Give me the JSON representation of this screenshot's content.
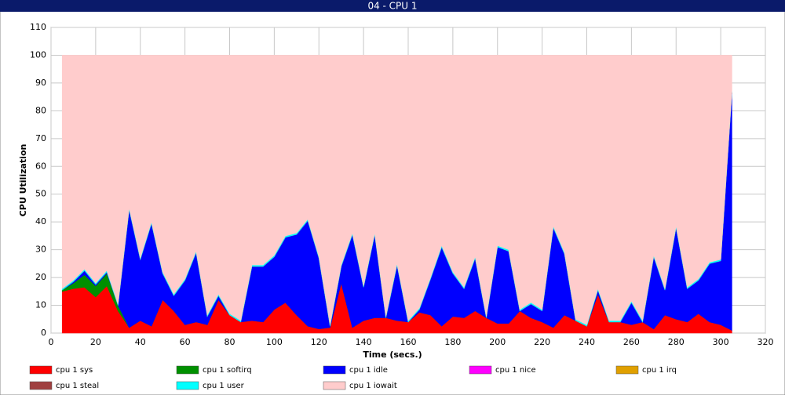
{
  "chart_data": {
    "type": "stacked_area",
    "title": "04 - CPU 1",
    "xlabel": "Time (secs.)",
    "ylabel": "CPU Utilization",
    "x": [
      5,
      10,
      15,
      20,
      25,
      30,
      35,
      40,
      45,
      50,
      55,
      60,
      65,
      70,
      75,
      80,
      85,
      90,
      95,
      100,
      105,
      110,
      115,
      120,
      125,
      130,
      135,
      140,
      145,
      150,
      155,
      160,
      165,
      170,
      175,
      180,
      185,
      190,
      195,
      200,
      205,
      210,
      215,
      220,
      225,
      230,
      235,
      240,
      245,
      250,
      255,
      260,
      265,
      270,
      275,
      280,
      285,
      290,
      295,
      300,
      305
    ],
    "xlim": [
      0,
      320
    ],
    "xticks": [
      0,
      20,
      40,
      60,
      80,
      100,
      120,
      140,
      160,
      180,
      200,
      220,
      240,
      260,
      280,
      300,
      320
    ],
    "ylim": [
      0,
      110
    ],
    "yticks": [
      0,
      10,
      20,
      30,
      40,
      50,
      60,
      70,
      80,
      90,
      100,
      110
    ],
    "grid": true,
    "series": [
      {
        "name": "cpu 1 sys",
        "color": "#ff0000",
        "values": [
          15,
          16,
          16.5,
          13,
          17,
          8,
          2,
          4.5,
          2.5,
          12,
          8,
          3,
          4,
          3,
          12,
          6.5,
          4,
          4.5,
          4,
          8.5,
          11,
          6.5,
          2.5,
          1.5,
          2,
          18,
          2,
          4.5,
          5.5,
          5.5,
          4.5,
          4,
          7.5,
          6.5,
          2.5,
          6,
          5.5,
          8,
          5.5,
          3.5,
          3.5,
          8,
          5.5,
          4,
          2,
          6.5,
          4.5,
          2.5,
          14,
          4,
          4,
          3,
          4,
          1.5,
          6.5,
          5,
          4,
          7,
          4,
          3,
          1
        ]
      },
      {
        "name": "cpu 1 softirq",
        "color": "#009000",
        "values": [
          0.5,
          2,
          4.5,
          4,
          4.5,
          2,
          0,
          0,
          0,
          0,
          0,
          0,
          0,
          0,
          0,
          0,
          0,
          0,
          0,
          0,
          0,
          0,
          0,
          0,
          0,
          0,
          0,
          0,
          0,
          0,
          0,
          0,
          0,
          0,
          0,
          0,
          0,
          0,
          0,
          0,
          0,
          0,
          0,
          0,
          0,
          0,
          0,
          0,
          0,
          0,
          0,
          0,
          0,
          0,
          0,
          0,
          0,
          0,
          0,
          0,
          0
        ]
      },
      {
        "name": "cpu 1 idle",
        "color": "#0000ff",
        "values": [
          0,
          0.5,
          1.5,
          0.5,
          0.5,
          0,
          42.5,
          22,
          37,
          9.5,
          5.5,
          16,
          25,
          3,
          1.5,
          0,
          0,
          19.5,
          20,
          19,
          23.5,
          29,
          38,
          25.5,
          0.5,
          6,
          33.5,
          12,
          30,
          0,
          20,
          0,
          1,
          13,
          28.5,
          15.5,
          10.5,
          19,
          0,
          27.5,
          26,
          0,
          5,
          4,
          36,
          22,
          0,
          0,
          1.5,
          0,
          0,
          8,
          0,
          26,
          9,
          33,
          12,
          12,
          21,
          23,
          85.5
        ]
      },
      {
        "name": "cpu 1 nice",
        "color": "#ff00ff",
        "values": [
          0,
          0,
          0,
          0,
          0,
          0,
          0,
          0,
          0,
          0,
          0,
          0,
          0,
          0,
          0,
          0,
          0,
          0,
          0,
          0,
          0,
          0,
          0,
          0,
          0,
          0,
          0,
          0,
          0,
          0,
          0,
          0,
          0,
          0,
          0,
          0,
          0,
          0,
          0,
          0,
          0,
          0,
          0,
          0,
          0,
          0,
          0,
          0,
          0,
          0,
          0,
          0,
          0,
          0,
          0,
          0,
          0,
          0,
          0,
          0,
          0
        ]
      },
      {
        "name": "cpu 1 irq",
        "color": "#e0a000",
        "values": [
          0,
          0,
          0,
          0,
          0,
          0,
          0,
          0,
          0,
          0,
          0,
          0,
          0,
          0,
          0,
          0,
          0,
          0,
          0,
          0,
          0,
          0,
          0,
          0,
          0,
          0,
          0,
          0,
          0,
          0,
          0,
          0,
          0,
          0,
          0,
          0,
          0,
          0,
          0,
          0,
          0,
          0,
          0,
          0,
          0,
          0,
          0,
          0,
          0,
          0,
          0,
          0,
          0,
          0,
          0,
          0,
          0,
          0,
          0,
          0,
          0
        ]
      },
      {
        "name": "cpu 1 steal",
        "color": "#a04040",
        "values": [
          0,
          0,
          0,
          0,
          0,
          0,
          0,
          0,
          0,
          0,
          0,
          0,
          0,
          0,
          0,
          0,
          0,
          0,
          0,
          0,
          0,
          0,
          0,
          0,
          0,
          0,
          0,
          0,
          0,
          0,
          0,
          0,
          0,
          0,
          0,
          0,
          0,
          0,
          0,
          0,
          0,
          0,
          0,
          0,
          0,
          0,
          0,
          0,
          0,
          0,
          0,
          0,
          0,
          0,
          0,
          0,
          0,
          0,
          0,
          0,
          0
        ]
      },
      {
        "name": "cpu 1 user",
        "color": "#00ffff",
        "values": [
          0.5,
          0.5,
          0.5,
          0.5,
          0.5,
          0.5,
          0.5,
          0.5,
          0.5,
          0.5,
          0.5,
          0.5,
          0.5,
          0.5,
          0.5,
          0.5,
          0.5,
          0.5,
          0.5,
          0.5,
          0.5,
          0.5,
          0.5,
          0.5,
          0.5,
          0.5,
          0.5,
          0.5,
          0.5,
          0.5,
          0.5,
          0.5,
          0.5,
          0.5,
          0.5,
          0.5,
          0.5,
          0.5,
          0.5,
          0.5,
          0.5,
          0.5,
          0.5,
          0.5,
          0.5,
          0.5,
          0.5,
          0.5,
          0.5,
          0.5,
          0.5,
          0.5,
          0.5,
          0.5,
          0.5,
          0.5,
          0.5,
          0.5,
          0.5,
          0.5,
          0.5
        ]
      },
      {
        "name": "cpu 1 iowait",
        "color": "#ffcccc",
        "values": [
          84,
          81,
          77,
          82,
          77.5,
          89.5,
          55,
          73,
          60,
          78,
          86,
          80.5,
          70.5,
          93.5,
          86,
          93,
          95.5,
          75.5,
          75.5,
          72,
          65,
          64,
          59,
          72.5,
          97,
          75.5,
          64,
          83,
          64,
          94,
          75,
          95.5,
          91,
          80,
          68.5,
          78,
          83.5,
          72.5,
          94,
          68.5,
          70,
          91.5,
          89,
          91.5,
          61.5,
          71,
          95,
          97,
          84,
          95.5,
          95.5,
          88.5,
          95.5,
          72,
          84,
          61.5,
          83.5,
          80.5,
          74.5,
          73.5,
          13
        ]
      }
    ]
  }
}
